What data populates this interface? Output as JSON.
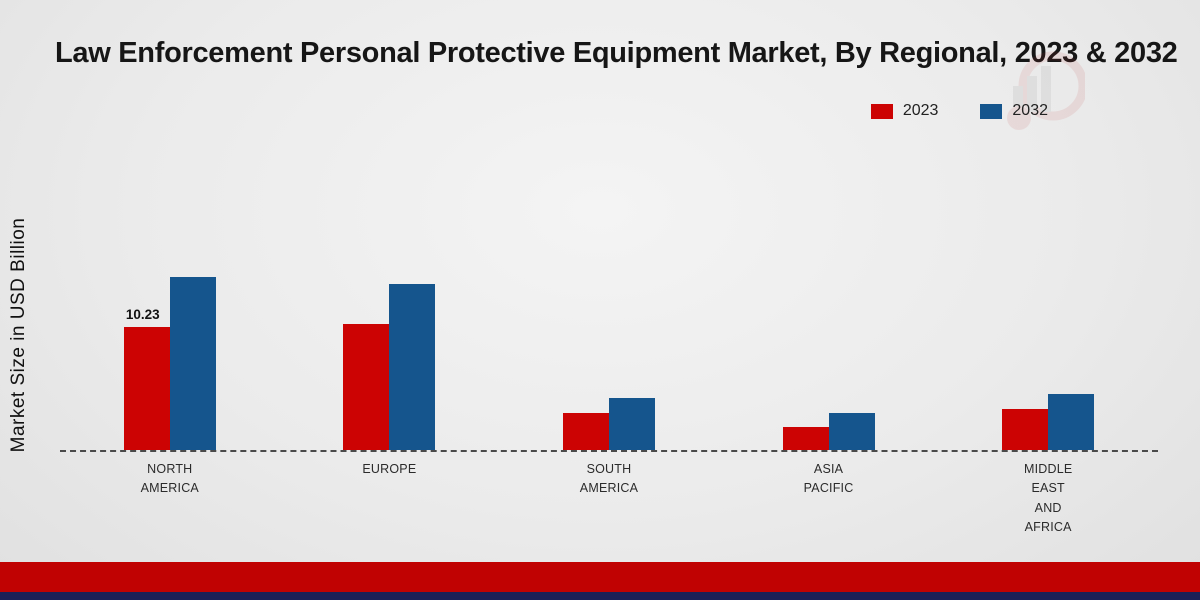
{
  "title": "Law Enforcement Personal Protective Equipment Market, By Regional, 2023 & 2032",
  "ylabel": "Market Size in USD Billion",
  "legend": {
    "items": [
      {
        "label": "2023",
        "color": "#cc0303"
      },
      {
        "label": "2032",
        "color": "#15558d"
      }
    ]
  },
  "chart_data": {
    "type": "bar",
    "title": "Law Enforcement Personal Protective Equipment Market, By Regional, 2023 & 2032",
    "xlabel": "",
    "ylabel": "Market Size in USD Billion",
    "categories": [
      "North America",
      "Europe",
      "South America",
      "Asia Pacific",
      "Middle East and Africa"
    ],
    "category_display": [
      [
        "NORTH",
        "AMERICA"
      ],
      [
        "EUROPE"
      ],
      [
        "SOUTH",
        "AMERICA"
      ],
      [
        "ASIA",
        "PACIFIC"
      ],
      [
        "MIDDLE",
        "EAST",
        "AND",
        "AFRICA"
      ]
    ],
    "series": [
      {
        "name": "2023",
        "color": "#cc0303",
        "values": [
          10.23,
          10.5,
          3.1,
          1.9,
          3.4
        ]
      },
      {
        "name": "2032",
        "color": "#15558d",
        "values": [
          14.4,
          13.8,
          4.3,
          3.1,
          4.7
        ]
      }
    ],
    "ylim": [
      0,
      16
    ],
    "grid": false,
    "baseline_style": "dashed",
    "legend_position": "top-right",
    "annotations": [
      {
        "category": "North America",
        "series": "2023",
        "text": "10.23"
      }
    ]
  },
  "footer": {
    "red_band_color": "#c00202",
    "navy_band_color": "#1c2057"
  }
}
